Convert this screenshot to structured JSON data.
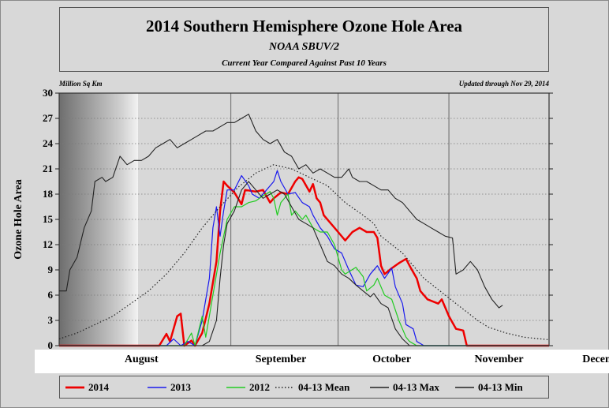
{
  "header": {
    "title": "2014 Southern Hemisphere Ozone Hole Area",
    "subtitle": "NOAA SBUV/2",
    "subtitle2": "Current Year Compared Against Past 10 Years"
  },
  "chart_data": {
    "type": "line",
    "units_label": "Million Sq Km",
    "updated_label": "Updated through Nov 29, 2014",
    "ylabel": "Ozone Hole Area",
    "ylim": [
      0,
      30
    ],
    "yticks": [
      "0",
      "3",
      "6",
      "9",
      "12",
      "15",
      "18",
      "21",
      "24",
      "27",
      "30"
    ],
    "xlim": [
      0,
      137
    ],
    "x_unit": "days from Jul 15 (approx.)",
    "month_labels": [
      "August",
      "September",
      "October",
      "November",
      "December"
    ],
    "month_label_days": [
      23,
      62,
      93,
      123,
      153
    ],
    "month_boundaries": [
      48,
      78,
      109
    ],
    "grid": true,
    "legend_position": "bottom",
    "series": [
      {
        "name": "2014",
        "color": "#ee0000",
        "style": "solid",
        "width": 2.5,
        "points": [
          [
            0,
            0
          ],
          [
            28,
            0
          ],
          [
            30,
            1.4
          ],
          [
            31,
            0.5
          ],
          [
            33,
            3.5
          ],
          [
            34,
            3.8
          ],
          [
            35,
            0
          ],
          [
            37,
            0.6
          ],
          [
            38,
            0
          ],
          [
            40,
            1.5
          ],
          [
            42,
            5
          ],
          [
            44,
            10
          ],
          [
            45,
            16
          ],
          [
            46,
            19.5
          ],
          [
            47,
            19
          ],
          [
            49,
            18.2
          ],
          [
            51,
            16.8
          ],
          [
            52,
            18.5
          ],
          [
            55,
            18.3
          ],
          [
            57,
            18.5
          ],
          [
            59,
            17
          ],
          [
            60,
            17.5
          ],
          [
            62,
            18.2
          ],
          [
            64,
            18
          ],
          [
            66,
            19.5
          ],
          [
            67,
            20
          ],
          [
            68,
            19.8
          ],
          [
            70,
            18.3
          ],
          [
            71,
            19.2
          ],
          [
            72,
            17.5
          ],
          [
            73,
            17
          ],
          [
            74,
            15.5
          ],
          [
            76,
            14.5
          ],
          [
            78,
            13.5
          ],
          [
            80,
            12.5
          ],
          [
            82,
            13.5
          ],
          [
            84,
            14
          ],
          [
            86,
            13.5
          ],
          [
            88,
            13.5
          ],
          [
            89,
            12.8
          ],
          [
            90,
            9.5
          ],
          [
            91,
            8.5
          ],
          [
            93,
            9.2
          ],
          [
            95,
            9.8
          ],
          [
            97,
            10.3
          ],
          [
            98,
            9.5
          ],
          [
            100,
            8
          ],
          [
            101,
            6.5
          ],
          [
            103,
            5.5
          ],
          [
            106,
            5
          ],
          [
            107,
            5.5
          ],
          [
            109,
            3.5
          ],
          [
            111,
            2
          ],
          [
            113,
            1.8
          ],
          [
            114,
            0
          ],
          [
            137,
            0
          ]
        ]
      },
      {
        "name": "2013",
        "color": "#1a1aee",
        "style": "solid",
        "width": 1.2,
        "points": [
          [
            0,
            0
          ],
          [
            30,
            0
          ],
          [
            32,
            0.8
          ],
          [
            34,
            0
          ],
          [
            36,
            0.5
          ],
          [
            38,
            0
          ],
          [
            40,
            3
          ],
          [
            42,
            8
          ],
          [
            43,
            14
          ],
          [
            44,
            16.5
          ],
          [
            45,
            13
          ],
          [
            46,
            16
          ],
          [
            47,
            18.5
          ],
          [
            49,
            18.5
          ],
          [
            51,
            20.2
          ],
          [
            53,
            19
          ],
          [
            54,
            18
          ],
          [
            56,
            17.5
          ],
          [
            58,
            18.5
          ],
          [
            60,
            19.5
          ],
          [
            61,
            20.8
          ],
          [
            62,
            19.5
          ],
          [
            64,
            18
          ],
          [
            66,
            18.2
          ],
          [
            68,
            17
          ],
          [
            70,
            16.5
          ],
          [
            71,
            15.5
          ],
          [
            73,
            14
          ],
          [
            75,
            13
          ],
          [
            77,
            11.5
          ],
          [
            79,
            11
          ],
          [
            81,
            9
          ],
          [
            83,
            7.2
          ],
          [
            85,
            7
          ],
          [
            87,
            8.5
          ],
          [
            89,
            9.5
          ],
          [
            91,
            8
          ],
          [
            93,
            9.2
          ],
          [
            94,
            7
          ],
          [
            96,
            5
          ],
          [
            97,
            2.5
          ],
          [
            99,
            2
          ],
          [
            100,
            0.5
          ],
          [
            102,
            0
          ],
          [
            137,
            0
          ]
        ]
      },
      {
        "name": "2012",
        "color": "#22cc22",
        "style": "solid",
        "width": 1.2,
        "points": [
          [
            0,
            0
          ],
          [
            35,
            0
          ],
          [
            37,
            1.5
          ],
          [
            38,
            0
          ],
          [
            40,
            3.5
          ],
          [
            41,
            1
          ],
          [
            43,
            6
          ],
          [
            45,
            11
          ],
          [
            47,
            15
          ],
          [
            49,
            16.5
          ],
          [
            51,
            16.5
          ],
          [
            53,
            17
          ],
          [
            55,
            17.2
          ],
          [
            57,
            17.8
          ],
          [
            59,
            18.3
          ],
          [
            60,
            17.5
          ],
          [
            61,
            15.5
          ],
          [
            62,
            17
          ],
          [
            64,
            18
          ],
          [
            65,
            15.5
          ],
          [
            66,
            16
          ],
          [
            68,
            15
          ],
          [
            69,
            15.5
          ],
          [
            71,
            14
          ],
          [
            73,
            13.5
          ],
          [
            75,
            13.5
          ],
          [
            77,
            12
          ],
          [
            79,
            9
          ],
          [
            80,
            8.5
          ],
          [
            83,
            9.3
          ],
          [
            85,
            8.2
          ],
          [
            86,
            6.5
          ],
          [
            88,
            7.2
          ],
          [
            89,
            8
          ],
          [
            91,
            6
          ],
          [
            93,
            5.5
          ],
          [
            95,
            3
          ],
          [
            97,
            1
          ],
          [
            98,
            0.5
          ],
          [
            100,
            0
          ],
          [
            137,
            0
          ]
        ]
      },
      {
        "name": "04-13 Mean",
        "color": "#222222",
        "style": "dotted",
        "width": 1.2,
        "points": [
          [
            0,
            0.8
          ],
          [
            5,
            1.5
          ],
          [
            10,
            2.5
          ],
          [
            15,
            3.5
          ],
          [
            20,
            5
          ],
          [
            25,
            6.5
          ],
          [
            30,
            8.5
          ],
          [
            35,
            11
          ],
          [
            40,
            14
          ],
          [
            45,
            16.5
          ],
          [
            50,
            18.8
          ],
          [
            55,
            20.5
          ],
          [
            60,
            21.5
          ],
          [
            65,
            21
          ],
          [
            70,
            20
          ],
          [
            75,
            19
          ],
          [
            80,
            17
          ],
          [
            85,
            15.5
          ],
          [
            88,
            14.5
          ],
          [
            90,
            13
          ],
          [
            93,
            12
          ],
          [
            96,
            11
          ],
          [
            99,
            9.5
          ],
          [
            102,
            8
          ],
          [
            105,
            7
          ],
          [
            108,
            6
          ],
          [
            111,
            5
          ],
          [
            114,
            4
          ],
          [
            117,
            3
          ],
          [
            120,
            2.2
          ],
          [
            125,
            1.5
          ],
          [
            130,
            1
          ],
          [
            137,
            0.7
          ]
        ]
      },
      {
        "name": "04-13 Max",
        "color": "#222222",
        "style": "solid",
        "width": 1.1,
        "points": [
          [
            0,
            6.5
          ],
          [
            2,
            6.5
          ],
          [
            3,
            9
          ],
          [
            5,
            10.5
          ],
          [
            7,
            14
          ],
          [
            9,
            16
          ],
          [
            10,
            19.5
          ],
          [
            12,
            20
          ],
          [
            13,
            19.5
          ],
          [
            15,
            20
          ],
          [
            17,
            22.5
          ],
          [
            19,
            21.5
          ],
          [
            21,
            22
          ],
          [
            23,
            22
          ],
          [
            25,
            22.5
          ],
          [
            27,
            23.5
          ],
          [
            29,
            24
          ],
          [
            31,
            24.5
          ],
          [
            33,
            23.5
          ],
          [
            35,
            24
          ],
          [
            37,
            24.5
          ],
          [
            39,
            25
          ],
          [
            41,
            25.5
          ],
          [
            43,
            25.5
          ],
          [
            45,
            26
          ],
          [
            47,
            26.5
          ],
          [
            49,
            26.5
          ],
          [
            51,
            27
          ],
          [
            53,
            27.5
          ],
          [
            55,
            25.5
          ],
          [
            57,
            24.5
          ],
          [
            59,
            24
          ],
          [
            61,
            24.5
          ],
          [
            63,
            23
          ],
          [
            65,
            22.5
          ],
          [
            67,
            21
          ],
          [
            69,
            21.5
          ],
          [
            71,
            20.5
          ],
          [
            73,
            21
          ],
          [
            75,
            20.5
          ],
          [
            77,
            20
          ],
          [
            79,
            20
          ],
          [
            81,
            21
          ],
          [
            82,
            20
          ],
          [
            84,
            19.5
          ],
          [
            86,
            19.5
          ],
          [
            88,
            19
          ],
          [
            90,
            18.5
          ],
          [
            92,
            18.5
          ],
          [
            94,
            17.5
          ],
          [
            96,
            17
          ],
          [
            98,
            16
          ],
          [
            100,
            15
          ],
          [
            102,
            14.5
          ],
          [
            104,
            14
          ],
          [
            106,
            13.5
          ],
          [
            108,
            13
          ],
          [
            110,
            12.8
          ],
          [
            111,
            8.5
          ],
          [
            113,
            9
          ],
          [
            115,
            10
          ],
          [
            117,
            9
          ],
          [
            119,
            7
          ],
          [
            121,
            5.5
          ],
          [
            123,
            4.5
          ],
          [
            124,
            4.8
          ]
        ]
      },
      {
        "name": "04-13 Min",
        "color": "#222222",
        "style": "solid",
        "width": 1.1,
        "points": [
          [
            0,
            0
          ],
          [
            40,
            0
          ],
          [
            42,
            0.5
          ],
          [
            44,
            3
          ],
          [
            45,
            8
          ],
          [
            46,
            12
          ],
          [
            47,
            14.5
          ],
          [
            49,
            16
          ],
          [
            51,
            18.5
          ],
          [
            53,
            19.5
          ],
          [
            55,
            18.5
          ],
          [
            57,
            17.5
          ],
          [
            59,
            18
          ],
          [
            61,
            18.5
          ],
          [
            63,
            18
          ],
          [
            65,
            16.5
          ],
          [
            67,
            15
          ],
          [
            69,
            14.5
          ],
          [
            71,
            14
          ],
          [
            73,
            12
          ],
          [
            75,
            10
          ],
          [
            77,
            9.5
          ],
          [
            79,
            8.5
          ],
          [
            81,
            8
          ],
          [
            83,
            7.2
          ],
          [
            85,
            6.5
          ],
          [
            87,
            5.8
          ],
          [
            88,
            6.2
          ],
          [
            90,
            5
          ],
          [
            92,
            4.5
          ],
          [
            94,
            2
          ],
          [
            96,
            0.8
          ],
          [
            98,
            0
          ],
          [
            137,
            0
          ]
        ]
      }
    ]
  }
}
